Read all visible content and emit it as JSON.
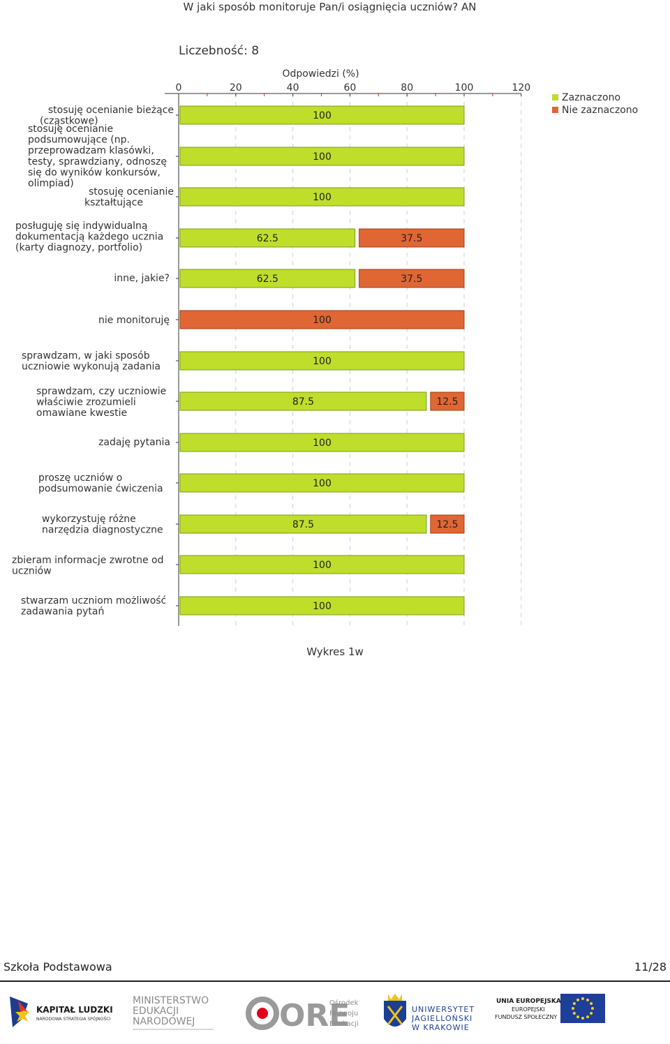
{
  "chart_title": "W jaki sposób monitoruje Pan/i osiągnięcia uczniów?  AN",
  "count_label": "Liczebność: 8",
  "caption": "Wykres 1w",
  "footer": {
    "left": "Szkoła Podstawowa",
    "right": "11/28"
  },
  "colors": {
    "selected": "#bede2b",
    "not_selected": "#e06634",
    "selected_border": "#7c9b18",
    "not_selected_border": "#9e3d16"
  },
  "logos": {
    "kapital": {
      "line1": "KAPITAŁ LUDZKI",
      "line2": "NARODOWA STRATEGIA SPÓJNOŚCI"
    },
    "men": {
      "line1": "MINISTERSTWO",
      "line2": "EDUKACJI",
      "line3": "NARODOWEJ"
    },
    "ore": {
      "mark": "ORE",
      "line1": "Ośrodek",
      "line2": "Rozwoju",
      "line3": "Edukacji"
    },
    "uj": {
      "line1": "UNIWERSYTET",
      "line2": "JAGIELLOŃSKI",
      "line3": "W KRAKOWIE"
    },
    "ue": {
      "line1": "UNIA EUROPEJSKA",
      "line2": "EUROPEJSKI",
      "line3": "FUNDUSZ SPOŁECZNY"
    }
  },
  "chart_data": {
    "type": "bar",
    "orientation": "horizontal",
    "stacked": true,
    "title": "W jaki sposób monitoruje Pan/i osiągnięcia uczniów?  AN",
    "xlabel": "Odpowiedzi (%)",
    "xlim": [
      0,
      120
    ],
    "xticks": [
      0,
      20,
      40,
      60,
      80,
      100,
      120
    ],
    "grid": true,
    "legend_position": "top-right",
    "categories": [
      [
        "stosuję ocenianie bieżące",
        "(cząstkowe)"
      ],
      [
        "stosuję ocenianie",
        "podsumowujące (np.",
        "przeprowadzam klasówki,",
        "testy, sprawdziany, odnoszę",
        "się do wyników konkursów,",
        "olimpiad)"
      ],
      [
        "stosuję ocenianie",
        "kształtujące"
      ],
      [
        "posługuję się indywidualną",
        "dokumentacją każdego ucznia",
        "(karty diagnozy, portfolio)"
      ],
      [
        "inne, jakie?"
      ],
      [
        "nie monitoruję"
      ],
      [
        "sprawdzam, w jaki sposób",
        "uczniowie wykonują zadania"
      ],
      [
        "sprawdzam, czy uczniowie",
        "właściwie zrozumieli",
        "omawiane kwestie"
      ],
      [
        "zadaję pytania"
      ],
      [
        "proszę uczniów o",
        "podsumowanie ćwiczenia"
      ],
      [
        "wykorzystuję różne",
        "narzędzia diagnostyczne"
      ],
      [
        "zbieram informacje zwrotne od",
        "uczniów"
      ],
      [
        "stwarzam uczniom możliwość",
        "zadawania pytań"
      ]
    ],
    "series": [
      {
        "name": "Zaznaczono",
        "values": [
          100,
          100,
          100,
          62.5,
          62.5,
          0,
          100,
          87.5,
          100,
          100,
          87.5,
          100,
          100
        ]
      },
      {
        "name": "Nie zaznaczono",
        "values": [
          0,
          0,
          0,
          37.5,
          37.5,
          100,
          0,
          12.5,
          0,
          0,
          12.5,
          0,
          0
        ]
      }
    ]
  }
}
